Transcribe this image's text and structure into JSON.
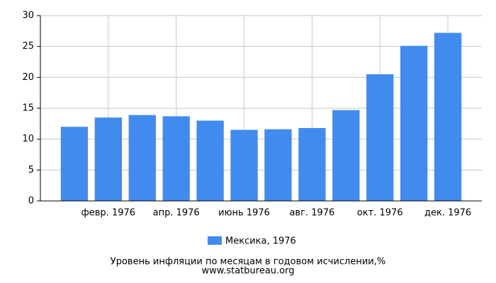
{
  "chart_data": {
    "type": "bar",
    "categories": [
      null,
      "февр. 1976",
      null,
      "апр. 1976",
      null,
      "июнь 1976",
      null,
      "авг. 1976",
      null,
      "окт. 1976",
      null,
      "дек. 1976"
    ],
    "series": [
      {
        "name": "Мексика, 1976",
        "color": "#428bee",
        "values": [
          12.0,
          13.5,
          13.9,
          13.7,
          13.0,
          11.5,
          11.6,
          11.8,
          14.7,
          20.5,
          25.1,
          27.2
        ]
      }
    ],
    "ylim": [
      0,
      30
    ],
    "yticks": [
      0,
      5,
      10,
      15,
      20,
      25,
      30
    ],
    "grid": true,
    "caption": "Уровень инфляции по месяцам в годовом исчислении,%",
    "source": "www.statbureau.org"
  }
}
